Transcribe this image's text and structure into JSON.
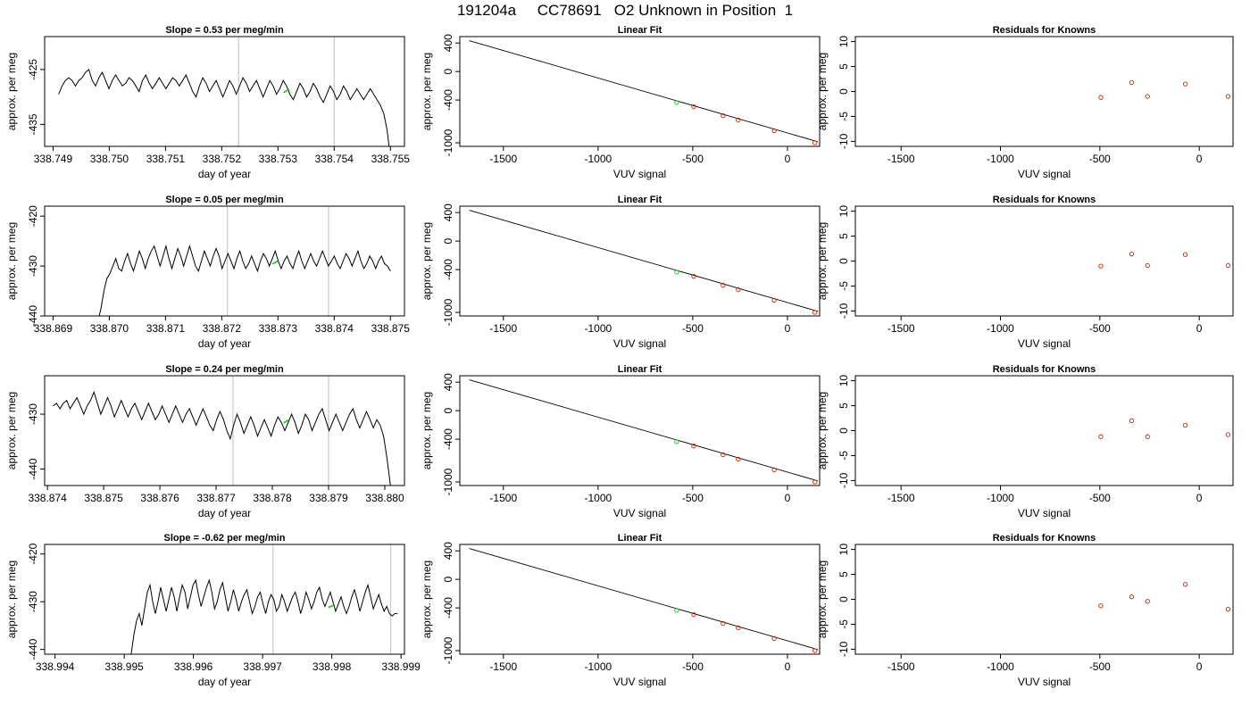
{
  "title": "191204a     CC78691   O2 Unknown in Position  1",
  "colors": {
    "trace": "#000000",
    "vline": "#c8c8c8",
    "green": "#00cc00",
    "point": "#cc2200"
  },
  "chart_data": [
    {
      "panel": "row1-timeseries",
      "type": "line",
      "title": "Slope =  0.53  per meg/min",
      "xlabel": "day of year",
      "ylabel": "approx. per meg",
      "xlim": [
        338.74885,
        338.75525
      ],
      "ylim": [
        -439,
        -419
      ],
      "xticks": [
        "338.749",
        "338.750",
        "338.751",
        "338.752",
        "338.753",
        "338.754",
        "338.755"
      ],
      "yticks": [
        "-425",
        "-435"
      ],
      "vlines": [
        338.7523,
        338.754
      ],
      "x_start": 338.7491,
      "x_end": 338.755,
      "y": [
        -429.5,
        -428,
        -427,
        -426.5,
        -427,
        -428,
        -427,
        -426.5,
        -425.5,
        -425,
        -427,
        -428,
        -426.5,
        -425.5,
        -427,
        -428.5,
        -427,
        -426,
        -427,
        -428,
        -427.5,
        -426.5,
        -427,
        -428,
        -429,
        -427,
        -426,
        -427.5,
        -428.5,
        -427.5,
        -426.5,
        -427.5,
        -428.5,
        -427.5,
        -426.5,
        -427,
        -428,
        -427,
        -426,
        -427.5,
        -429,
        -430,
        -428,
        -426.5,
        -427.5,
        -429,
        -428,
        -427,
        -428.5,
        -430,
        -428.5,
        -427,
        -428,
        -429.5,
        -428,
        -426.5,
        -427.5,
        -429,
        -428,
        -427,
        -428.5,
        -430,
        -428.5,
        -427,
        -428,
        -429.5,
        -428.5,
        -427,
        -428,
        -429.5,
        -430.5,
        -429,
        -427.5,
        -428.5,
        -430,
        -429,
        -427.5,
        -428.5,
        -430,
        -431,
        -429.5,
        -428,
        -429,
        -430.5,
        -429.5,
        -428,
        -429,
        -430.5,
        -429.5,
        -428.5,
        -429.5,
        -430.5,
        -429.5,
        -428.5,
        -429.5,
        -430.5,
        -431.5,
        -433,
        -436,
        -441
      ],
      "green_segment": {
        "x": [
          338.7531,
          338.7532
        ],
        "y": [
          -429.2,
          -428.6
        ]
      }
    },
    {
      "panel": "row1-linear-fit",
      "type": "scatter",
      "title": "Linear Fit",
      "xlabel": "VUV signal",
      "ylabel": "approx. per meg",
      "xlim": [
        -1730,
        170
      ],
      "ylim": [
        -1050,
        490
      ],
      "xticks": [
        -1500,
        -1000,
        -500,
        0
      ],
      "yticks": [
        400,
        0,
        -400,
        -1000
      ],
      "fit_line": {
        "x": [
          -1680,
          160
        ],
        "y": [
          433,
          -985
        ]
      },
      "known_points": {
        "x": [
          -495,
          -340,
          -260,
          -70,
          145
        ],
        "y": [
          -495,
          -619,
          -680,
          -830,
          -1000
        ]
      },
      "unknown_point": {
        "x": -585,
        "y": -435
      }
    },
    {
      "panel": "row1-residuals",
      "type": "scatter",
      "title": "Residuals for Knowns",
      "xlabel": "VUV signal",
      "ylabel": "approx. per meg",
      "xlim": [
        -1730,
        170
      ],
      "ylim": [
        -11,
        11
      ],
      "xticks": [
        -1500,
        -1000,
        -500,
        0
      ],
      "yticks": [
        10,
        5,
        0,
        -5,
        -10
      ],
      "x": [
        -495,
        -340,
        -260,
        -70,
        145
      ],
      "y": [
        -1.2,
        1.8,
        -1.0,
        1.5,
        -1.0
      ]
    },
    {
      "panel": "row2-timeseries",
      "type": "line",
      "title": "Slope =  0.05  per meg/min",
      "xlabel": "day of year",
      "ylabel": "approx. per meg",
      "xlim": [
        338.86885,
        338.87525
      ],
      "ylim": [
        -440,
        -418
      ],
      "xticks": [
        "338.869",
        "338.870",
        "338.871",
        "338.872",
        "338.873",
        "338.874",
        "338.875"
      ],
      "yticks": [
        "-420",
        "-430",
        "-440"
      ],
      "vlines": [
        338.8721,
        338.8739
      ],
      "x_start": 338.8698,
      "x_end": 338.875,
      "y": [
        -441,
        -438.5,
        -435,
        -432.5,
        -431.5,
        -430,
        -428.5,
        -430.5,
        -431,
        -429,
        -427.5,
        -429.5,
        -431,
        -429,
        -427,
        -428.5,
        -430.5,
        -428.5,
        -427,
        -426,
        -428,
        -430,
        -428,
        -426,
        -428.5,
        -430.5,
        -428.5,
        -426.5,
        -428,
        -430,
        -428,
        -426,
        -428,
        -430,
        -431,
        -429,
        -427,
        -428.5,
        -430,
        -428,
        -426.5,
        -428,
        -430.5,
        -429,
        -427.5,
        -429,
        -430.5,
        -428.5,
        -427,
        -429,
        -430.5,
        -429.5,
        -428,
        -429.5,
        -431,
        -429,
        -427.5,
        -428.5,
        -430,
        -428.5,
        -427,
        -429,
        -430.5,
        -429,
        -428,
        -429.5,
        -430.5,
        -428.5,
        -427,
        -429,
        -430.5,
        -429,
        -427.5,
        -429,
        -430,
        -428.5,
        -427,
        -428.5,
        -430,
        -429,
        -428,
        -429.5,
        -430.5,
        -429,
        -427.5,
        -428.5,
        -430,
        -428.5,
        -427,
        -429,
        -430.5,
        -429.5,
        -428,
        -429,
        -430.5,
        -429,
        -428,
        -429.5,
        -430,
        -431
      ],
      "green_segment": {
        "x": [
          338.8729,
          338.873
        ],
        "y": [
          -429.6,
          -429.0
        ]
      }
    },
    {
      "panel": "row2-linear-fit",
      "type": "scatter",
      "title": "Linear Fit",
      "xlabel": "VUV signal",
      "ylabel": "approx. per meg",
      "xlim": [
        -1730,
        170
      ],
      "ylim": [
        -1050,
        490
      ],
      "xticks": [
        -1500,
        -1000,
        -500,
        0
      ],
      "yticks": [
        400,
        0,
        -400,
        -1000
      ],
      "fit_line": {
        "x": [
          -1680,
          160
        ],
        "y": [
          433,
          -985
        ]
      },
      "known_points": {
        "x": [
          -495,
          -340,
          -260,
          -70,
          145
        ],
        "y": [
          -495,
          -619,
          -680,
          -830,
          -1000
        ]
      },
      "unknown_point": {
        "x": -585,
        "y": -435
      }
    },
    {
      "panel": "row2-residuals",
      "type": "scatter",
      "title": "Residuals for Knowns",
      "xlabel": "VUV signal",
      "ylabel": "approx. per meg",
      "xlim": [
        -1730,
        170
      ],
      "ylim": [
        -11,
        11
      ],
      "xticks": [
        -1500,
        -1000,
        -500,
        0
      ],
      "yticks": [
        10,
        5,
        0,
        -5,
        -10
      ],
      "x": [
        -495,
        -340,
        -260,
        -70,
        145
      ],
      "y": [
        -1.0,
        1.4,
        -0.9,
        1.3,
        -0.9
      ]
    },
    {
      "panel": "row3-timeseries",
      "type": "line",
      "title": "Slope =  0.24  per meg/min",
      "xlabel": "day of year",
      "ylabel": "approx. per meg",
      "xlim": [
        338.87395,
        338.88035
      ],
      "ylim": [
        -443,
        -423
      ],
      "xticks": [
        "338.874",
        "338.875",
        "338.876",
        "338.877",
        "338.878",
        "338.879",
        "338.880"
      ],
      "yticks": [
        "-430",
        "-440"
      ],
      "vlines": [
        338.8773,
        338.879
      ],
      "x_start": 338.8741,
      "x_end": 338.8801,
      "y": [
        -428.5,
        -428,
        -429,
        -428,
        -427.5,
        -429,
        -428,
        -427,
        -428.5,
        -430,
        -428.5,
        -427.5,
        -426,
        -428,
        -430,
        -428.5,
        -427,
        -428.5,
        -430.5,
        -429,
        -427.5,
        -429,
        -430.5,
        -429,
        -428,
        -429.5,
        -431,
        -429.5,
        -428,
        -429.5,
        -431,
        -430,
        -428.5,
        -430,
        -431.5,
        -430,
        -428.5,
        -430,
        -431.5,
        -430,
        -429,
        -430.5,
        -432,
        -430.5,
        -429,
        -430.5,
        -432,
        -433,
        -431,
        -429.5,
        -431,
        -433,
        -434.5,
        -432,
        -430,
        -431.5,
        -433.5,
        -432,
        -430.5,
        -432,
        -434,
        -432.5,
        -431,
        -432.5,
        -434,
        -432,
        -430.5,
        -431.5,
        -433,
        -431.5,
        -430,
        -431.5,
        -433.5,
        -432,
        -430,
        -431,
        -433,
        -431.5,
        -430,
        -429,
        -431,
        -433,
        -431.5,
        -430,
        -431.5,
        -433,
        -431.5,
        -430,
        -429,
        -431,
        -432.5,
        -431,
        -429.5,
        -431,
        -432.5,
        -431,
        -432,
        -434,
        -438,
        -443
      ],
      "green_segment": {
        "x": [
          338.8782,
          338.8783
        ],
        "y": [
          -431.6,
          -431.0
        ]
      }
    },
    {
      "panel": "row3-linear-fit",
      "type": "scatter",
      "title": "Linear Fit",
      "xlabel": "VUV signal",
      "ylabel": "approx. per meg",
      "xlim": [
        -1730,
        170
      ],
      "ylim": [
        -1050,
        490
      ],
      "xticks": [
        -1500,
        -1000,
        -500,
        0
      ],
      "yticks": [
        400,
        0,
        -400,
        -1000
      ],
      "fit_line": {
        "x": [
          -1680,
          160
        ],
        "y": [
          433,
          -985
        ]
      },
      "known_points": {
        "x": [
          -495,
          -340,
          -260,
          -70,
          145
        ],
        "y": [
          -495,
          -619,
          -680,
          -830,
          -1000
        ]
      },
      "unknown_point": {
        "x": -585,
        "y": -435
      }
    },
    {
      "panel": "row3-residuals",
      "type": "scatter",
      "title": "Residuals for Knowns",
      "xlabel": "VUV signal",
      "ylabel": "approx. per meg",
      "xlim": [
        -1730,
        170
      ],
      "ylim": [
        -11,
        11
      ],
      "xticks": [
        -1500,
        -1000,
        -500,
        0
      ],
      "yticks": [
        10,
        5,
        0,
        -5,
        -10
      ],
      "x": [
        -495,
        -340,
        -260,
        -70,
        145
      ],
      "y": [
        -1.2,
        2.0,
        -1.2,
        1.1,
        -0.8
      ]
    },
    {
      "panel": "row4-timeseries",
      "type": "line",
      "title": "Slope =  -0.62  per meg/min",
      "xlabel": "day of year",
      "ylabel": "approx. per meg",
      "xlim": [
        338.99385,
        338.99905
      ],
      "ylim": [
        -441,
        -418
      ],
      "xticks": [
        "338.994",
        "338.995",
        "338.996",
        "338.997",
        "338.998",
        "338.999"
      ],
      "yticks": [
        "-420",
        "-430",
        "-440"
      ],
      "vlines": [
        338.99715,
        338.99885
      ],
      "x_start": 338.9951,
      "x_end": 338.99895,
      "y": [
        -441,
        -437,
        -434,
        -432.5,
        -435,
        -431.5,
        -428,
        -426.5,
        -430,
        -432.5,
        -430,
        -427,
        -429.5,
        -432,
        -429.5,
        -427,
        -429,
        -432,
        -429,
        -426.5,
        -428,
        -431.5,
        -429,
        -426.5,
        -425.5,
        -428.5,
        -431,
        -429,
        -427,
        -425.5,
        -428,
        -431.5,
        -430,
        -427.5,
        -426,
        -429,
        -432,
        -430,
        -427.5,
        -429.5,
        -432,
        -430,
        -428.5,
        -427.5,
        -430,
        -432.5,
        -431,
        -429,
        -428,
        -430.5,
        -432.5,
        -430,
        -428.5,
        -429.5,
        -432,
        -431,
        -428.5,
        -430,
        -432,
        -430.5,
        -429,
        -428,
        -430,
        -432.5,
        -430.5,
        -428,
        -429.5,
        -431.5,
        -430,
        -428,
        -427,
        -429.5,
        -431,
        -429.5,
        -428,
        -430,
        -432,
        -430.5,
        -429,
        -431,
        -432.5,
        -431,
        -429,
        -427.5,
        -429.5,
        -432,
        -430,
        -428,
        -426.5,
        -429,
        -431.5,
        -430,
        -428.5,
        -430.5,
        -432,
        -431,
        -432.5,
        -433,
        -432.5,
        -432.5
      ],
      "green_segment": {
        "x": [
          338.99795,
          338.99802
        ],
        "y": [
          -431.2,
          -430.8
        ]
      }
    },
    {
      "panel": "row4-linear-fit",
      "type": "scatter",
      "title": "Linear Fit",
      "xlabel": "VUV signal",
      "ylabel": "approx. per meg",
      "xlim": [
        -1730,
        170
      ],
      "ylim": [
        -1050,
        490
      ],
      "xticks": [
        -1500,
        -1000,
        -500,
        0
      ],
      "yticks": [
        400,
        0,
        -400,
        -1000
      ],
      "fit_line": {
        "x": [
          -1680,
          160
        ],
        "y": [
          433,
          -985
        ]
      },
      "known_points": {
        "x": [
          -495,
          -340,
          -260,
          -70,
          145
        ],
        "y": [
          -495,
          -619,
          -680,
          -830,
          -1000
        ]
      },
      "unknown_point": {
        "x": -585,
        "y": -435
      }
    },
    {
      "panel": "row4-residuals",
      "type": "scatter",
      "title": "Residuals for Knowns",
      "xlabel": "VUV signal",
      "ylabel": "approx. per meg",
      "xlim": [
        -1730,
        170
      ],
      "ylim": [
        -11,
        11
      ],
      "xticks": [
        -1500,
        -1000,
        -500,
        0
      ],
      "yticks": [
        10,
        5,
        0,
        -5,
        -10
      ],
      "x": [
        -495,
        -340,
        -260,
        -70,
        145
      ],
      "y": [
        -1.3,
        0.5,
        -0.4,
        3.0,
        -2.0
      ]
    }
  ]
}
